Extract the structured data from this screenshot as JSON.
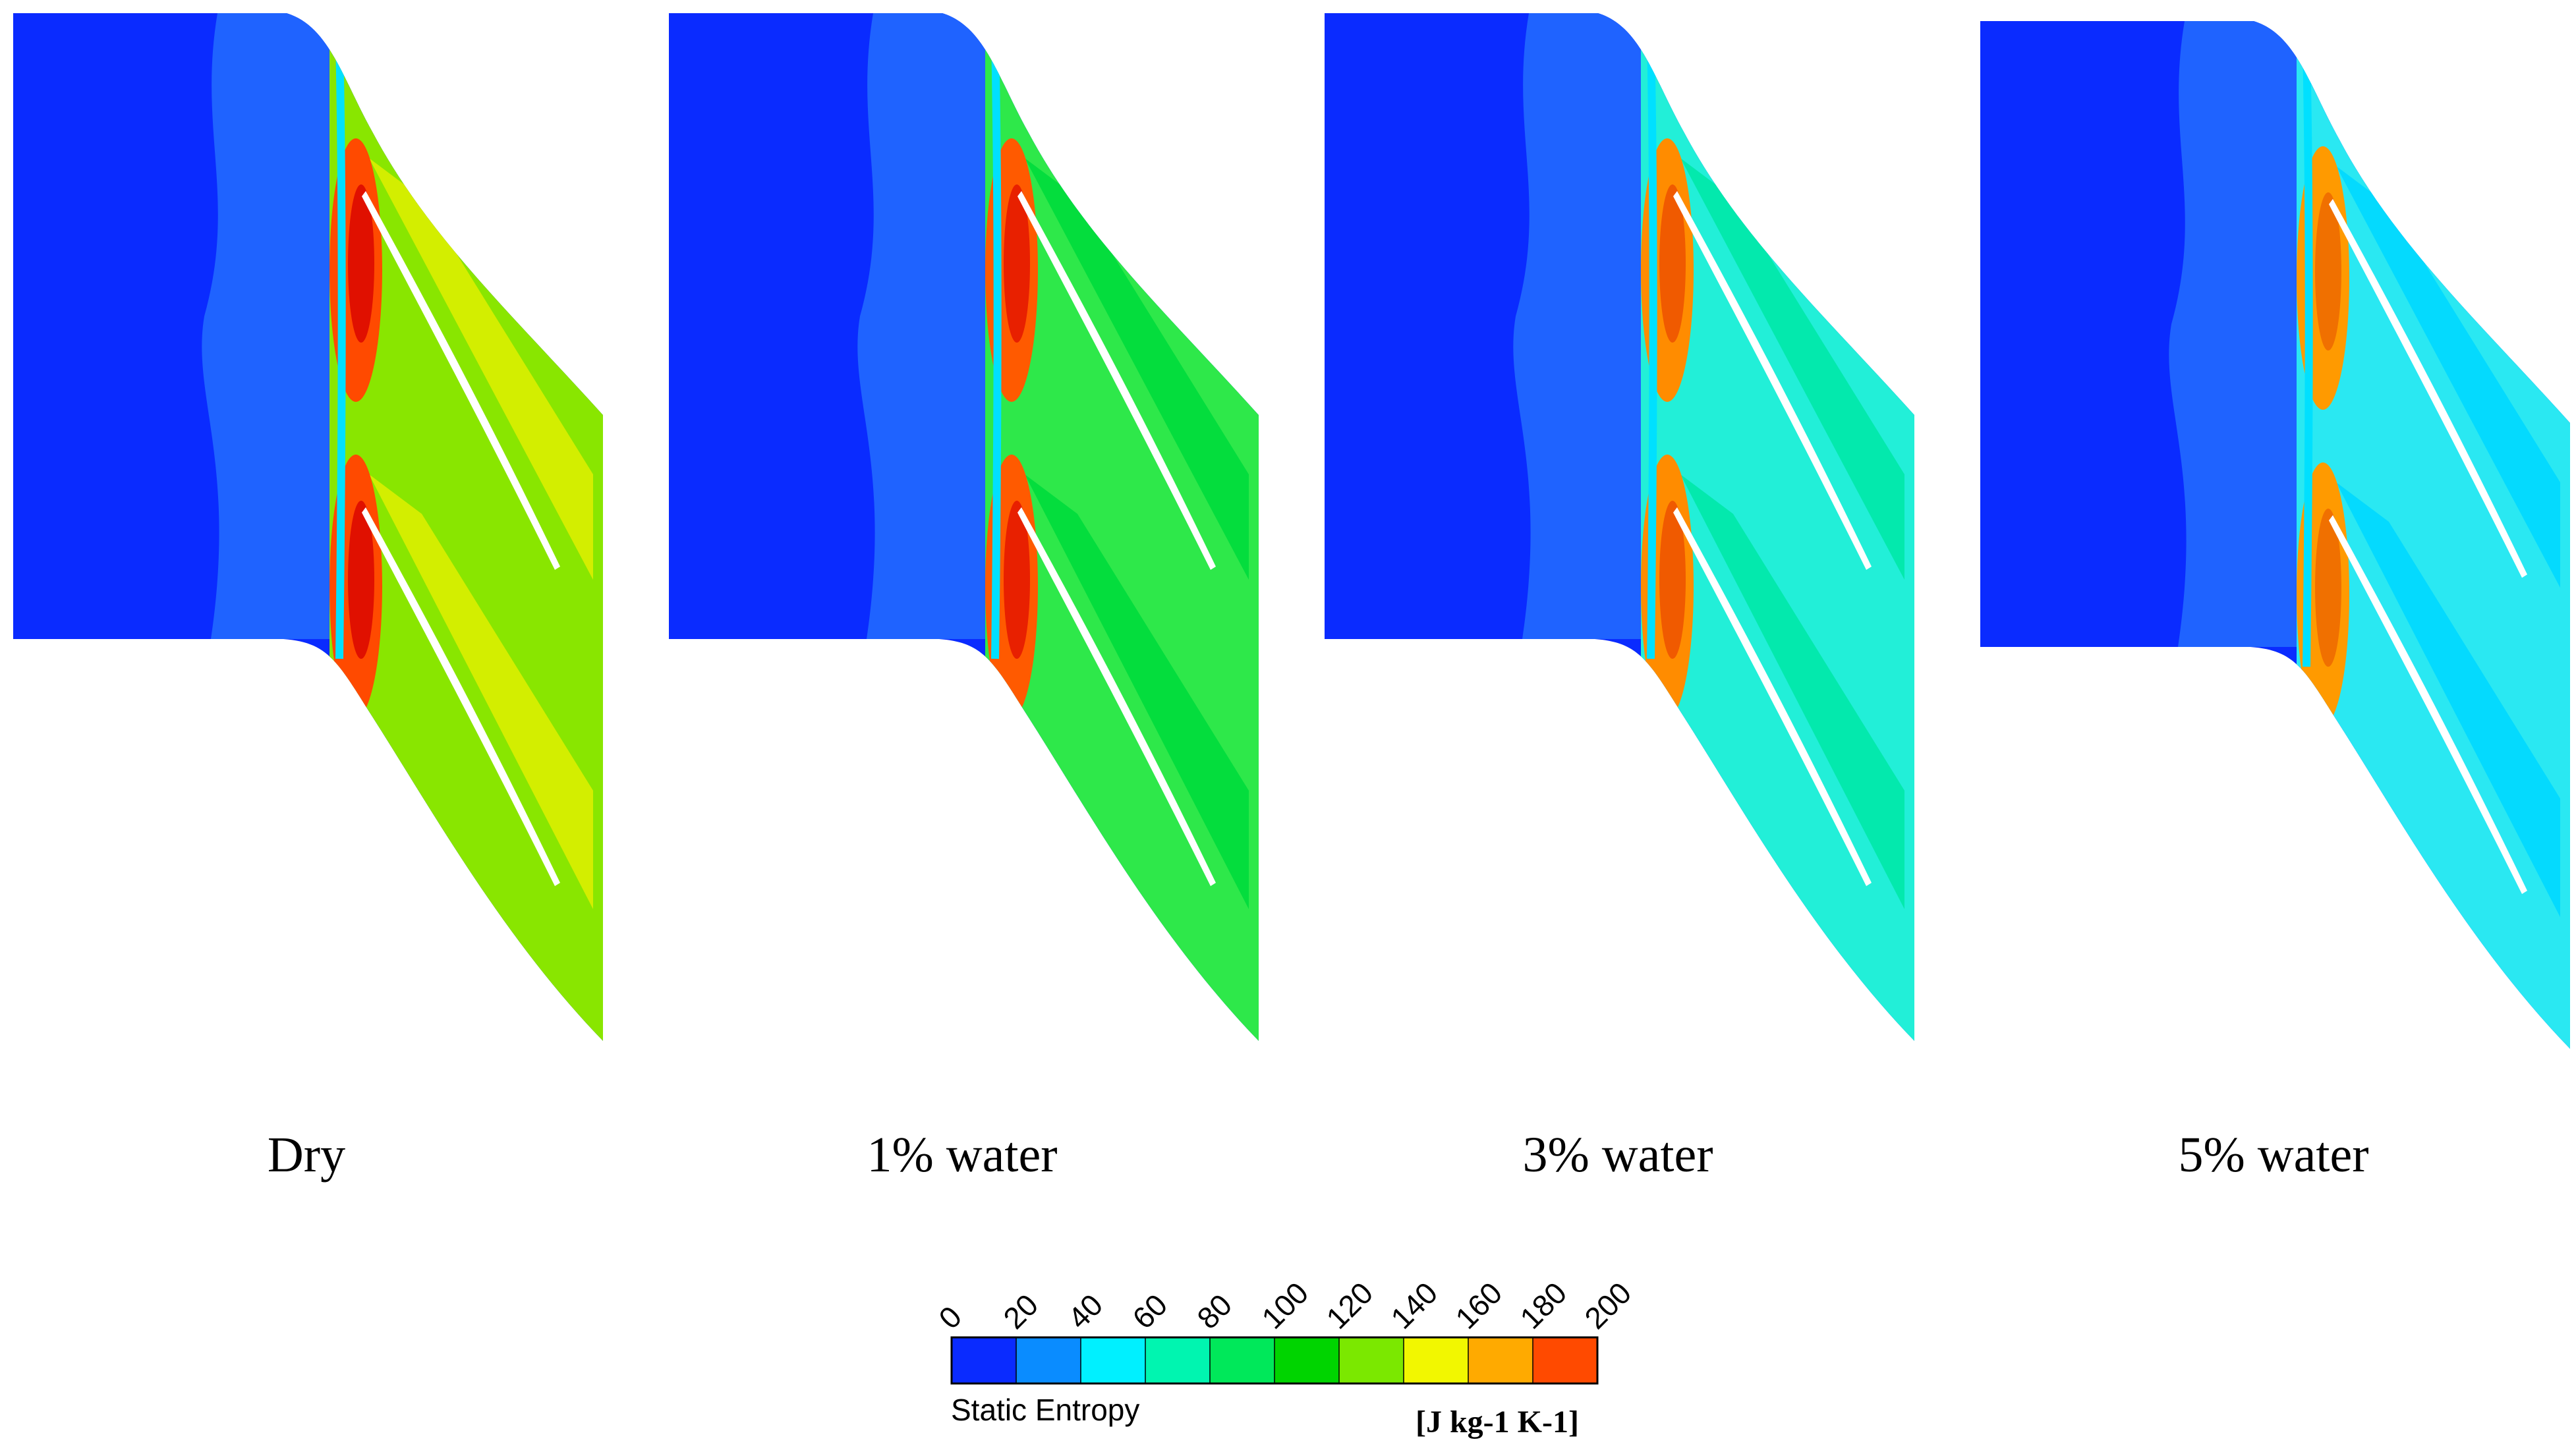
{
  "panels": [
    {
      "label": "Dry",
      "level": 0
    },
    {
      "label": "1% water",
      "level": 1
    },
    {
      "label": "3% water",
      "level": 2
    },
    {
      "label": "5% water",
      "level": 3
    }
  ],
  "legend": {
    "title": "Static Entropy",
    "unit": "[J kg-1 K-1]",
    "ticks": [
      "0",
      "20",
      "40",
      "60",
      "80",
      "100",
      "120",
      "140",
      "160",
      "180",
      "200"
    ],
    "colors": [
      "#0a2bff",
      "#0a8cff",
      "#00f0ff",
      "#00f5b0",
      "#00e85a",
      "#00d400",
      "#7be800",
      "#f2f700",
      "#ffaa00",
      "#ff4a00"
    ]
  },
  "colormap": {
    "background": "#0a2bff",
    "wake_light": "#1f63ff",
    "panel_fills": [
      "#89e600",
      "#2ee84a",
      "#22efd8",
      "#2ae8f2"
    ],
    "panel_bands": [
      "#dcee00",
      "#00dc3c",
      "#00e8a8",
      "#00d8ff"
    ],
    "panel_hot": [
      "#ff4a00",
      "#ff5a00",
      "#ff8c00",
      "#ff9a00"
    ],
    "panel_core": [
      "#e01000",
      "#e82000",
      "#f05a00",
      "#f07000"
    ]
  }
}
